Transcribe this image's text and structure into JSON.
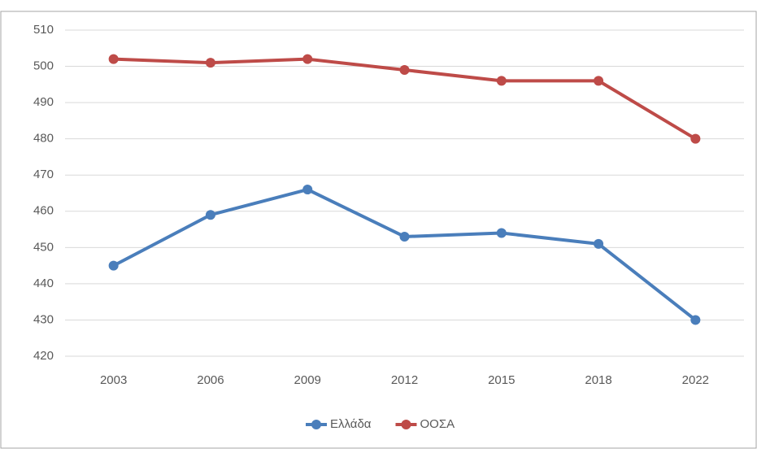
{
  "chart_data": {
    "type": "line",
    "categories": [
      "2003",
      "2006",
      "2009",
      "2012",
      "2015",
      "2018",
      "2022"
    ],
    "series": [
      {
        "name": "Ελλάδα",
        "color": "#4a7ebb",
        "values": [
          445,
          459,
          466,
          453,
          454,
          451,
          430
        ]
      },
      {
        "name": "ΟΟΣΑ",
        "color": "#be4b48",
        "values": [
          502,
          501,
          502,
          499,
          496,
          496,
          480
        ]
      }
    ],
    "ylim": [
      420,
      510
    ],
    "yticks": [
      420,
      430,
      440,
      450,
      460,
      470,
      480,
      490,
      500,
      510
    ],
    "grid": true,
    "legend": "bottom"
  }
}
